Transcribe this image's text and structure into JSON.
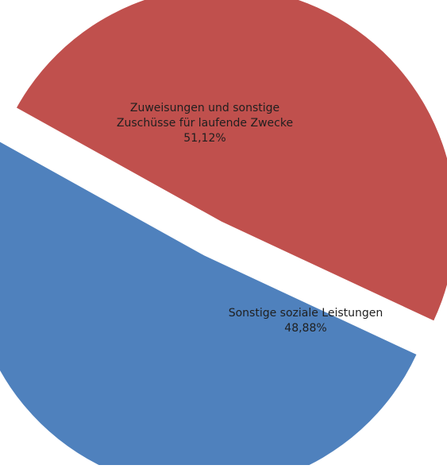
{
  "chart_data": {
    "type": "pie",
    "title": "",
    "exploded": true,
    "slices": [
      {
        "label_lines": [
          "Zuweisungen und sonstige",
          "Zuschüsse für laufende Zwecke"
        ],
        "percent_label": "51,12%",
        "value": 51.12,
        "color": "#4F81BD"
      },
      {
        "label_lines": [
          "Sonstige soziale Leistungen"
        ],
        "percent_label": "48,88%",
        "value": 48.88,
        "color": "#C0504D"
      }
    ]
  }
}
